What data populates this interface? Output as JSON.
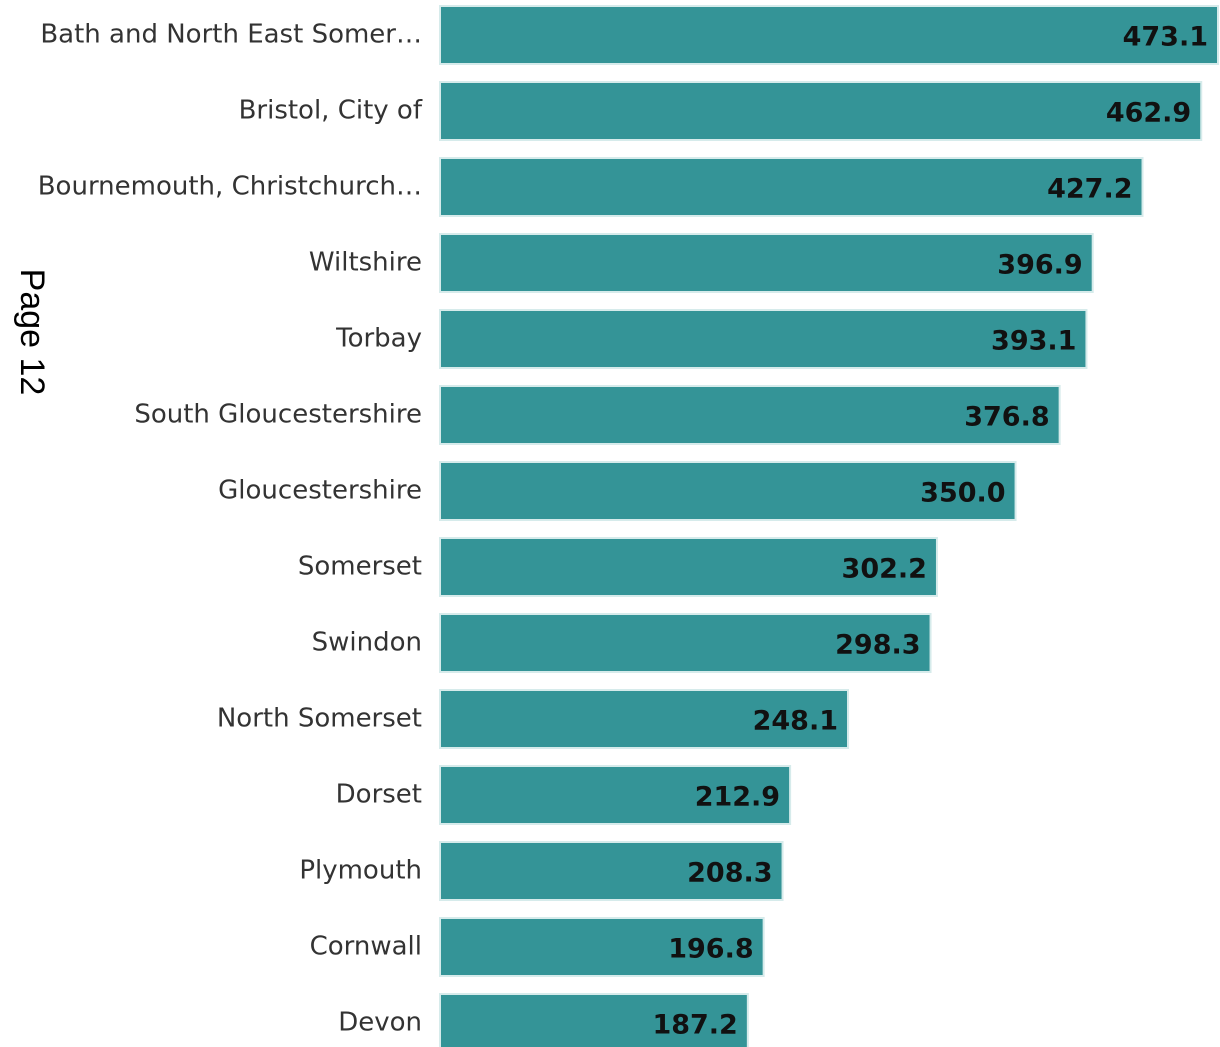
{
  "chart_data": {
    "type": "bar",
    "orientation": "horizontal",
    "annotation": "Page 12",
    "categories": [
      "Bath and North East Somer…",
      "Bristol, City of",
      "Bournemouth, Christchurch…",
      "Wiltshire",
      "Torbay",
      "South Gloucestershire",
      "Gloucestershire",
      "Somerset",
      "Swindon",
      "North Somerset",
      "Dorset",
      "Plymouth",
      "Cornwall",
      "Devon"
    ],
    "values": [
      473.1,
      462.9,
      427.2,
      396.9,
      393.1,
      376.8,
      350.0,
      302.2,
      298.3,
      248.1,
      212.9,
      208.3,
      196.8,
      187.2
    ],
    "value_labels": [
      "473.1",
      "462.9",
      "427.2",
      "396.9",
      "393.1",
      "376.8",
      "350.0",
      "302.2",
      "298.3",
      "248.1",
      "212.9",
      "208.3",
      "196.8",
      "187.2"
    ],
    "color": "#349497"
  }
}
